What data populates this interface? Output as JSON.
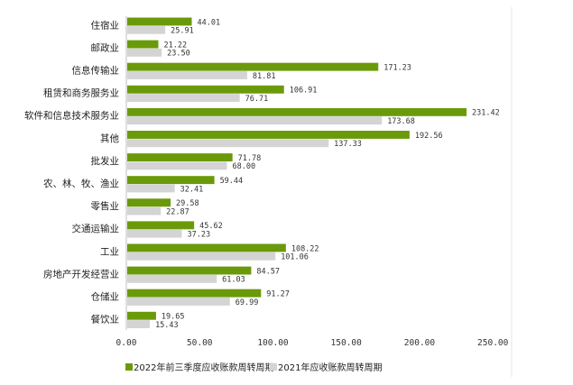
{
  "chart_data": {
    "type": "bar",
    "orientation": "horizontal",
    "categories": [
      "住宿业",
      "邮政业",
      "信息传输业",
      "租赁和商务服务业",
      "软件和信息技术服务业",
      "其他",
      "批发业",
      "农、林、牧、渔业",
      "零售业",
      "交通运输业",
      "工业",
      "房地产开发经营业",
      "仓储业",
      "餐饮业"
    ],
    "series": [
      {
        "name": "2022年前三季度应收账款周转周期",
        "color": "#6a9a0a",
        "values": [
          44.01,
          21.22,
          171.23,
          106.91,
          231.42,
          192.56,
          71.78,
          59.44,
          29.58,
          45.62,
          108.22,
          84.57,
          91.27,
          19.65
        ],
        "labels": [
          "44.01",
          "21.22",
          "171.23",
          "106.91",
          "231.42",
          "192.56",
          "71.78",
          "59.44",
          "29.58",
          "45.62",
          "108.22",
          "84.57",
          "91.27",
          "19.65"
        ]
      },
      {
        "name": "2021年应收账款周转周期",
        "color": "#d4d4d4",
        "values": [
          25.91,
          23.5,
          81.81,
          76.71,
          173.68,
          137.33,
          68.0,
          32.41,
          22.87,
          37.23,
          101.06,
          61.03,
          69.99,
          15.43
        ],
        "labels": [
          "25.91",
          "23.50",
          "81.81",
          "76.71",
          "173.68",
          "137.33",
          "68.00",
          "32.41",
          "22.87",
          "37.23",
          "101.06",
          "61.03",
          "69.99",
          "15.43"
        ]
      }
    ],
    "x_ticks": [
      "0.00",
      "50.00",
      "100.00",
      "150.00",
      "200.00",
      "250.00"
    ],
    "xlim": [
      0,
      250
    ],
    "grid": false,
    "legend_position": "bottom"
  }
}
